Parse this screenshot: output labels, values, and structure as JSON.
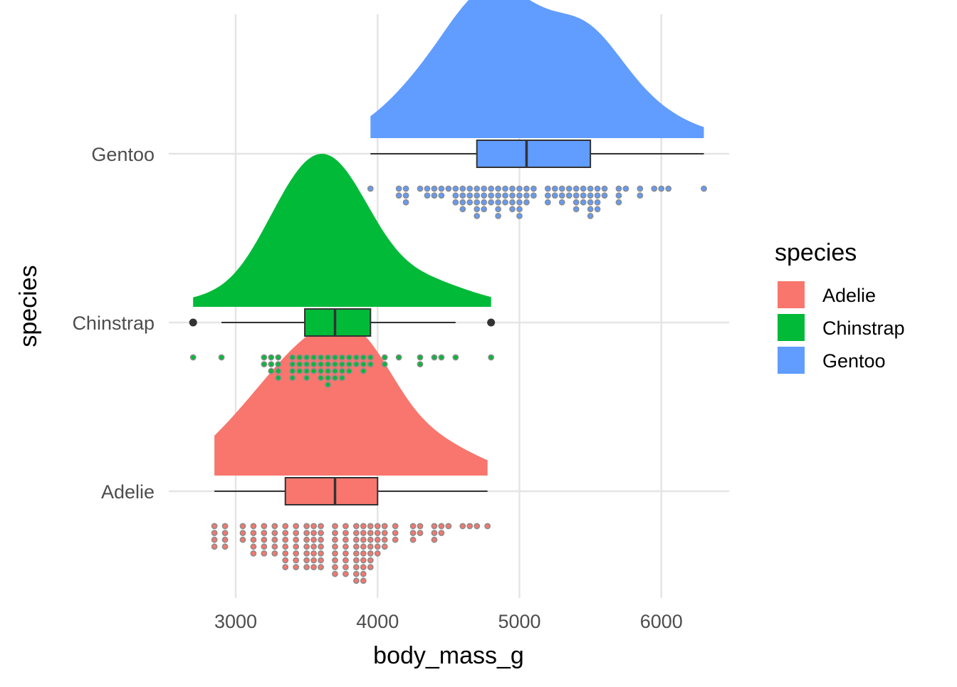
{
  "chart_data": {
    "type": "raincloud",
    "xlabel": "body_mass_g",
    "ylabel": "species",
    "xlim": [
      2600,
      6500
    ],
    "x_ticks": [
      3000,
      4000,
      5000,
      6000
    ],
    "x_tick_labels": [
      "3000",
      "4000",
      "5000",
      "6000"
    ],
    "grid": true,
    "legend": {
      "title": "species",
      "position": "right",
      "entries": [
        {
          "label": "Adelie",
          "color": "#F8766D"
        },
        {
          "label": "Chinstrap",
          "color": "#00BA38"
        },
        {
          "label": "Gentoo",
          "color": "#619CFF"
        }
      ]
    },
    "series": [
      {
        "name": "Adelie",
        "color": "#F8766D",
        "box": {
          "min": 2850,
          "q1": 3350,
          "median": 3700,
          "q3": 4000,
          "max": 4775,
          "outliers": []
        },
        "density_range": [
          2850,
          4775
        ],
        "density_peak": 3600,
        "dot_columns": [
          [
            2850,
            4
          ],
          [
            2925,
            4
          ],
          [
            3050,
            3
          ],
          [
            3125,
            5
          ],
          [
            3200,
            5
          ],
          [
            3275,
            5
          ],
          [
            3350,
            7
          ],
          [
            3425,
            7
          ],
          [
            3500,
            7
          ],
          [
            3550,
            7
          ],
          [
            3600,
            7
          ],
          [
            3700,
            8
          ],
          [
            3775,
            8
          ],
          [
            3850,
            9
          ],
          [
            3900,
            9
          ],
          [
            3950,
            7
          ],
          [
            4000,
            5
          ],
          [
            4050,
            4
          ],
          [
            4125,
            3
          ],
          [
            4250,
            3
          ],
          [
            4300,
            2
          ],
          [
            4400,
            3
          ],
          [
            4450,
            2
          ],
          [
            4500,
            1
          ],
          [
            4600,
            1
          ],
          [
            4650,
            1
          ],
          [
            4700,
            1
          ],
          [
            4775,
            1
          ]
        ]
      },
      {
        "name": "Chinstrap",
        "color": "#00BA38",
        "box": {
          "min": 2900,
          "q1": 3487,
          "median": 3700,
          "q3": 3950,
          "max": 4550,
          "outliers": [
            2700,
            4800
          ]
        },
        "density_range": [
          2700,
          4800
        ],
        "density_peak": 3675,
        "dot_columns": [
          [
            2700,
            1
          ],
          [
            2900,
            1
          ],
          [
            3200,
            2
          ],
          [
            3250,
            3
          ],
          [
            3300,
            4
          ],
          [
            3400,
            4
          ],
          [
            3450,
            3
          ],
          [
            3500,
            4
          ],
          [
            3550,
            3
          ],
          [
            3600,
            4
          ],
          [
            3650,
            5
          ],
          [
            3700,
            4
          ],
          [
            3750,
            4
          ],
          [
            3800,
            3
          ],
          [
            3850,
            2
          ],
          [
            3900,
            3
          ],
          [
            3950,
            2
          ],
          [
            4050,
            2
          ],
          [
            4150,
            1
          ],
          [
            4300,
            2
          ],
          [
            4400,
            1
          ],
          [
            4450,
            1
          ],
          [
            4550,
            1
          ],
          [
            4800,
            1
          ]
        ]
      },
      {
        "name": "Gentoo",
        "color": "#619CFF",
        "box": {
          "min": 3950,
          "q1": 4700,
          "median": 5050,
          "q3": 5500,
          "max": 6300,
          "outliers": []
        },
        "density_range": [
          3950,
          6300
        ],
        "density_peak": 4900,
        "dot_columns": [
          [
            3950,
            1
          ],
          [
            4150,
            2
          ],
          [
            4200,
            3
          ],
          [
            4300,
            1
          ],
          [
            4350,
            2
          ],
          [
            4400,
            2
          ],
          [
            4450,
            2
          ],
          [
            4500,
            1
          ],
          [
            4550,
            3
          ],
          [
            4600,
            4
          ],
          [
            4650,
            3
          ],
          [
            4700,
            5
          ],
          [
            4750,
            4
          ],
          [
            4800,
            3
          ],
          [
            4850,
            5
          ],
          [
            4900,
            3
          ],
          [
            4950,
            4
          ],
          [
            5000,
            5
          ],
          [
            5050,
            3
          ],
          [
            5100,
            2
          ],
          [
            5200,
            3
          ],
          [
            5250,
            2
          ],
          [
            5300,
            3
          ],
          [
            5350,
            2
          ],
          [
            5400,
            4
          ],
          [
            5450,
            3
          ],
          [
            5500,
            5
          ],
          [
            5550,
            4
          ],
          [
            5600,
            2
          ],
          [
            5700,
            3
          ],
          [
            5750,
            1
          ],
          [
            5850,
            2
          ],
          [
            5950,
            1
          ],
          [
            6000,
            1
          ],
          [
            6050,
            1
          ],
          [
            6300,
            1
          ]
        ]
      }
    ]
  }
}
